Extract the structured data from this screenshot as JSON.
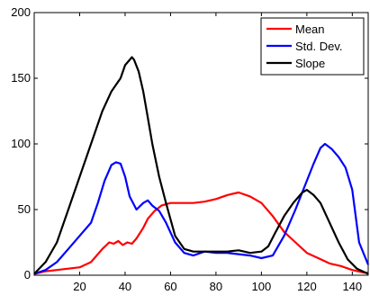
{
  "chart_data": {
    "type": "line",
    "title": "",
    "xlabel": "",
    "ylabel": "",
    "xlim": [
      0,
      147
    ],
    "ylim": [
      0,
      200
    ],
    "xticks": [
      20,
      40,
      60,
      80,
      100,
      120,
      140
    ],
    "yticks": [
      0,
      50,
      100,
      150,
      200
    ],
    "grid": false,
    "legend_position": "top-right",
    "series": [
      {
        "name": "Mean",
        "color": "#ff0000",
        "x": [
          0,
          5,
          10,
          15,
          20,
          25,
          30,
          33,
          35,
          37,
          39,
          41,
          43,
          45,
          48,
          50,
          53,
          56,
          60,
          65,
          70,
          75,
          80,
          85,
          90,
          95,
          100,
          105,
          110,
          115,
          120,
          125,
          130,
          135,
          140,
          145,
          147
        ],
        "y": [
          1,
          3,
          4,
          5,
          6,
          10,
          20,
          25,
          24,
          26,
          23,
          25,
          24,
          28,
          36,
          43,
          49,
          53,
          55,
          55,
          55,
          56,
          58,
          61,
          63,
          60,
          55,
          45,
          33,
          25,
          17,
          13,
          9,
          7,
          4,
          2,
          2
        ]
      },
      {
        "name": "Std. Dev.",
        "color": "#0000ff",
        "x": [
          0,
          5,
          10,
          15,
          20,
          25,
          28,
          31,
          34,
          36,
          38,
          40,
          42,
          45,
          48,
          50,
          52,
          55,
          58,
          62,
          66,
          70,
          75,
          80,
          85,
          90,
          95,
          100,
          105,
          110,
          115,
          120,
          123,
          126,
          128,
          131,
          134,
          137,
          140,
          143,
          147
        ],
        "y": [
          1,
          4,
          10,
          20,
          30,
          40,
          55,
          72,
          84,
          86,
          85,
          75,
          60,
          50,
          55,
          57,
          53,
          49,
          40,
          25,
          17,
          15,
          18,
          17,
          17,
          16,
          15,
          13,
          15,
          30,
          50,
          72,
          85,
          97,
          100,
          96,
          90,
          82,
          65,
          25,
          8
        ]
      },
      {
        "name": "Slope",
        "color": "#000000",
        "x": [
          0,
          5,
          10,
          15,
          20,
          25,
          30,
          34,
          38,
          40,
          42,
          43,
          44,
          46,
          48,
          50,
          52,
          55,
          58,
          62,
          66,
          70,
          75,
          80,
          85,
          90,
          95,
          100,
          103,
          106,
          110,
          114,
          118,
          120,
          123,
          126,
          130,
          134,
          138,
          142,
          147
        ],
        "y": [
          1,
          10,
          25,
          50,
          75,
          100,
          125,
          140,
          150,
          160,
          164,
          166,
          164,
          155,
          140,
          120,
          100,
          75,
          55,
          30,
          20,
          18,
          18,
          18,
          18,
          19,
          17,
          18,
          22,
          32,
          45,
          55,
          63,
          65,
          61,
          55,
          40,
          25,
          12,
          5,
          1
        ]
      }
    ]
  }
}
